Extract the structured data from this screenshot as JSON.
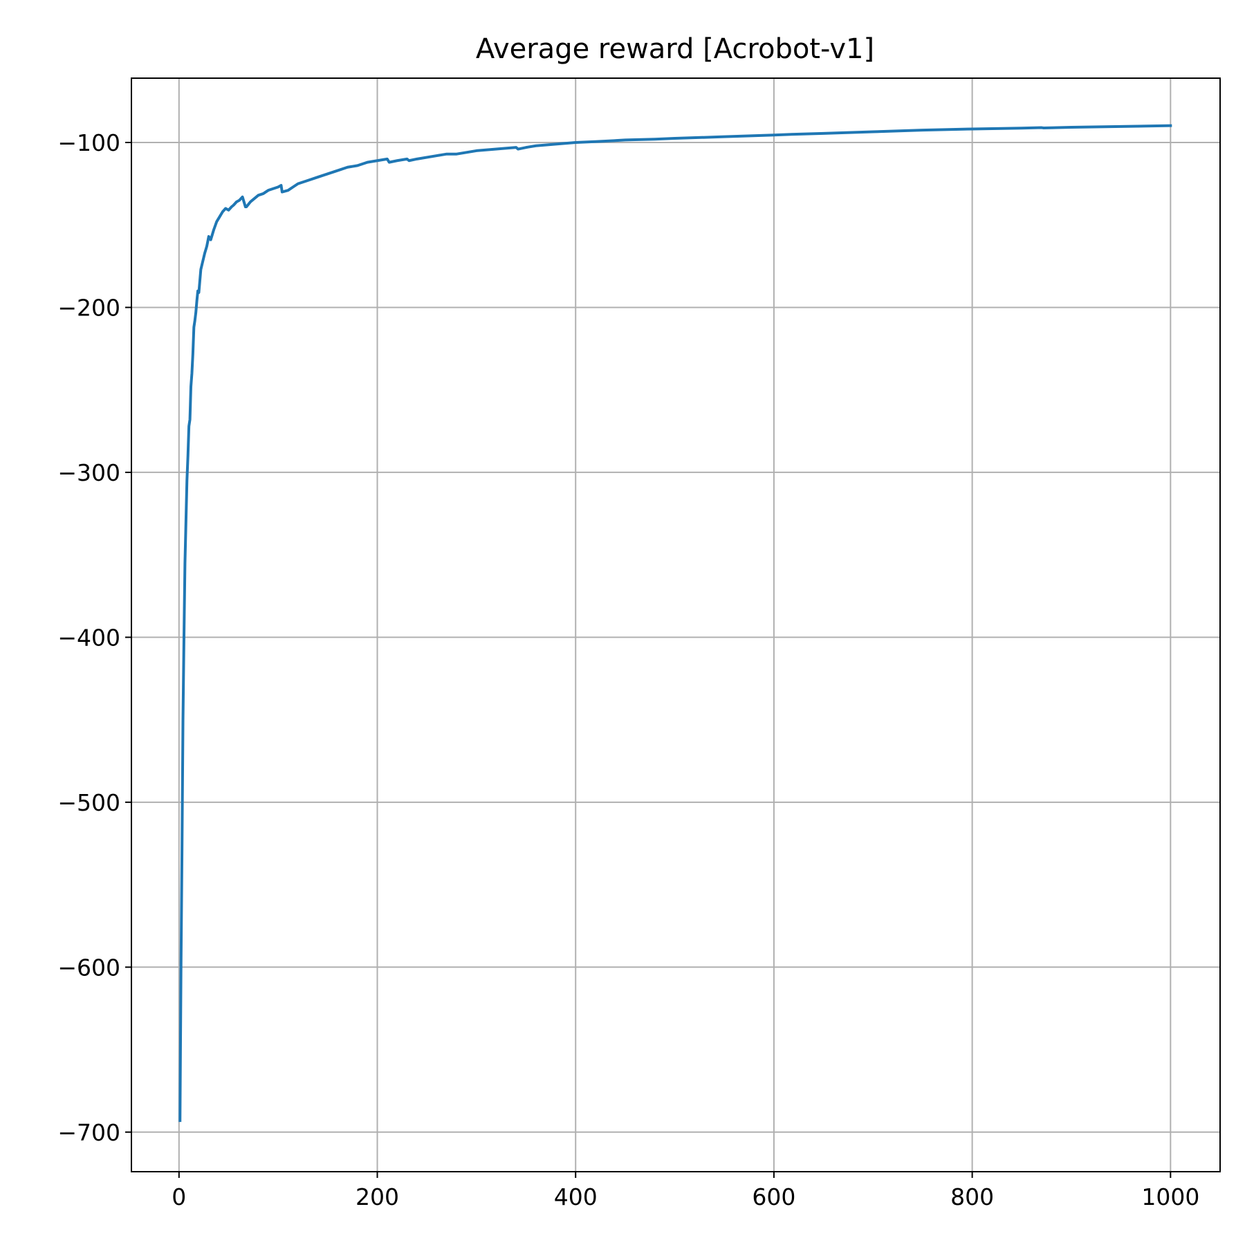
{
  "chart_data": {
    "type": "line",
    "title": "Average reward [Acrobot-v1]",
    "xlabel": "",
    "ylabel": "",
    "xlim": [
      -48,
      1050
    ],
    "ylim": [
      -724,
      -61
    ],
    "grid": true,
    "xticks": [
      0,
      200,
      400,
      600,
      800,
      1000
    ],
    "yticks": [
      -100,
      -200,
      -300,
      -400,
      -500,
      -600,
      -700
    ],
    "xtick_labels": [
      "0",
      "200",
      "400",
      "600",
      "800",
      "1000"
    ],
    "ytick_labels": [
      "−100",
      "−200",
      "−300",
      "−400",
      "−500",
      "−600",
      "−700"
    ],
    "series": [
      {
        "color": "#1f77b4",
        "x": [
          1,
          2,
          3,
          4,
          5,
          6,
          7,
          8,
          9,
          10,
          11,
          12,
          13,
          14,
          15,
          16,
          17,
          18,
          19,
          20,
          22,
          24,
          26,
          28,
          30,
          32,
          35,
          38,
          41,
          44,
          47,
          50,
          53,
          55,
          58,
          61,
          64,
          67,
          68,
          72,
          76,
          80,
          85,
          90,
          95,
          100,
          103,
          104,
          110,
          115,
          120,
          130,
          140,
          150,
          160,
          170,
          180,
          190,
          200,
          210,
          212,
          220,
          230,
          232,
          240,
          260,
          270,
          280,
          300,
          320,
          340,
          342,
          350,
          360,
          380,
          400,
          420,
          450,
          480,
          500,
          550,
          600,
          620,
          650,
          700,
          750,
          800,
          850,
          870,
          872,
          900,
          950,
          1000
        ],
        "y": [
          -693,
          -600,
          -530,
          -450,
          -400,
          -355,
          -330,
          -305,
          -290,
          -272,
          -268,
          -248,
          -240,
          -228,
          -212,
          -208,
          -203,
          -196,
          -190,
          -191,
          -177,
          -172,
          -167,
          -163,
          -157,
          -159,
          -153,
          -148,
          -145,
          -142,
          -140,
          -141,
          -139,
          -138,
          -136,
          -135,
          -133,
          -139,
          -139,
          -136,
          -134,
          -132,
          -131,
          -129,
          -128,
          -127,
          -126,
          -130,
          -129,
          -127,
          -125,
          -123,
          -121,
          -119,
          -117,
          -115,
          -114,
          -112,
          -111,
          -110,
          -112,
          -111,
          -110,
          -111,
          -110,
          -108,
          -107,
          -107,
          -105,
          -104,
          -103,
          -104,
          -103,
          -102,
          -101,
          -100,
          -99.5,
          -98.5,
          -98,
          -97.5,
          -96.5,
          -95.5,
          -95,
          -94.5,
          -93.5,
          -92.5,
          -91.8,
          -91.3,
          -91,
          -91.2,
          -90.8,
          -90.3,
          -89.8
        ]
      }
    ]
  }
}
